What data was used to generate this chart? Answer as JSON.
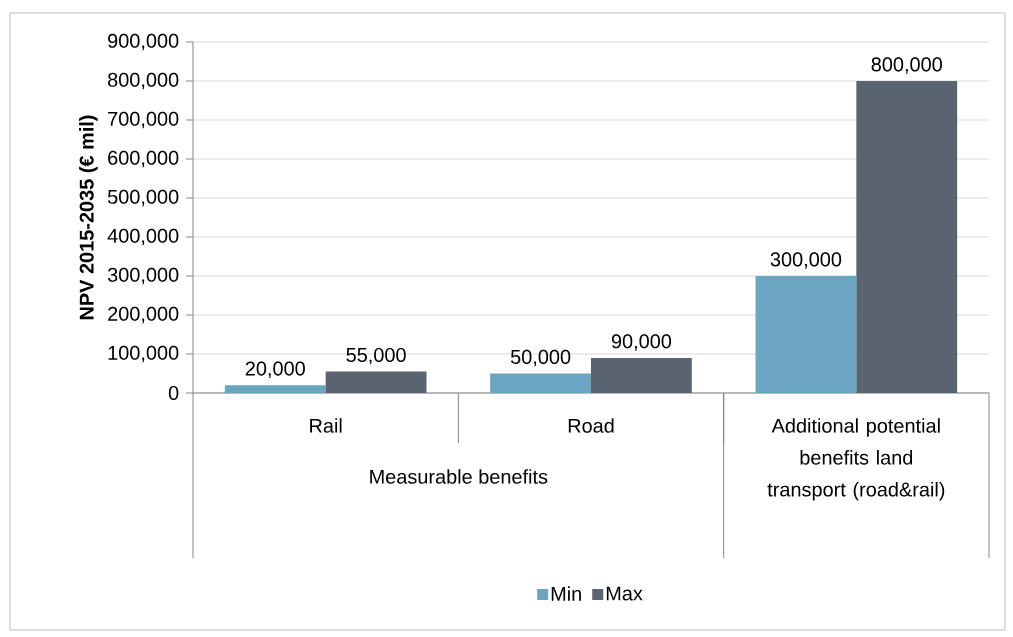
{
  "chart_data": {
    "type": "bar",
    "ylabel": "NPV 2015-2035 (€ mil)",
    "categories": [
      "Rail",
      "Road",
      "Additional potential benefits land transport (road&rail)"
    ],
    "annotations": [
      "Measurable benefits"
    ],
    "series": [
      {
        "name": "Min",
        "color": "#6aa5c1",
        "values": [
          20000,
          50000,
          300000
        ],
        "value_labels": [
          "20,000",
          "50,000",
          "300,000"
        ]
      },
      {
        "name": "Max",
        "color": "#5a6370",
        "values": [
          55000,
          90000,
          800000
        ],
        "value_labels": [
          "55,000",
          "90,000",
          "800,000"
        ]
      }
    ],
    "ylim": [
      0,
      900000
    ],
    "yticks": [
      {
        "value": 0,
        "label": "0"
      },
      {
        "value": 100000,
        "label": "100,000"
      },
      {
        "value": 200000,
        "label": "200,000"
      },
      {
        "value": 300000,
        "label": "300,000"
      },
      {
        "value": 400000,
        "label": "400,000"
      },
      {
        "value": 500000,
        "label": "500,000"
      },
      {
        "value": 600000,
        "label": "600,000"
      },
      {
        "value": 700000,
        "label": "700,000"
      },
      {
        "value": 800000,
        "label": "800,000"
      },
      {
        "value": 900000,
        "label": "900,000"
      }
    ],
    "grid": "y",
    "legend": "bottom"
  }
}
